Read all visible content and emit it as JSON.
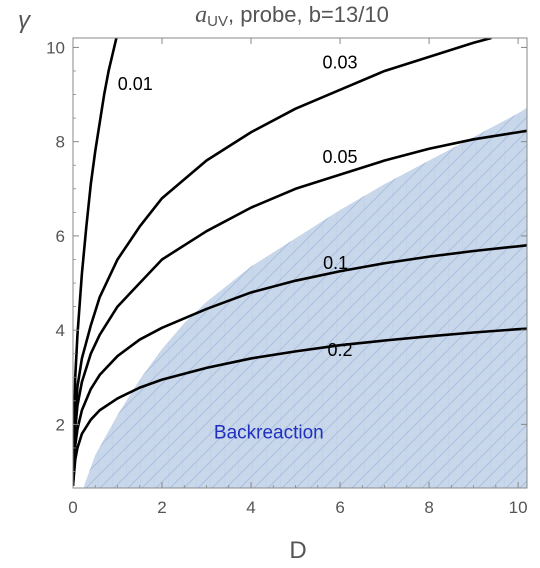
{
  "chart_data": {
    "type": "line",
    "title_main": "a",
    "title_sub": "UV",
    "title_rest": ", probe, b=13/10",
    "xlabel": "D",
    "ylabel": "γ",
    "xlim": [
      0,
      10.2
    ],
    "ylim": [
      0.65,
      10.2
    ],
    "xticks": [
      0,
      2,
      4,
      6,
      8,
      10
    ],
    "yticks": [
      2,
      4,
      6,
      8,
      10
    ],
    "grid": false,
    "series": [
      {
        "name": "0.01",
        "x": [
          0,
          0.05,
          0.1,
          0.2,
          0.3,
          0.4,
          0.5,
          0.6,
          0.7,
          0.8,
          0.9,
          1.0
        ],
        "y": [
          0.7,
          3.0,
          3.9,
          5.2,
          6.2,
          7.1,
          7.8,
          8.4,
          9.0,
          9.5,
          9.9,
          10.3
        ]
      },
      {
        "name": "0.03",
        "x": [
          0,
          0.05,
          0.1,
          0.2,
          0.4,
          0.6,
          1.0,
          1.5,
          2,
          3,
          4,
          5,
          6,
          7,
          8,
          9,
          9.4
        ],
        "y": [
          0.7,
          2.2,
          2.8,
          3.4,
          4.1,
          4.7,
          5.5,
          6.2,
          6.8,
          7.6,
          8.2,
          8.7,
          9.1,
          9.5,
          9.8,
          10.1,
          10.2
        ]
      },
      {
        "name": "0.05",
        "x": [
          0,
          0.05,
          0.1,
          0.2,
          0.4,
          0.6,
          1.0,
          1.5,
          2,
          3,
          4,
          5,
          6,
          7,
          8,
          9,
          10,
          10.2
        ],
        "y": [
          0.7,
          1.9,
          2.4,
          2.9,
          3.5,
          3.9,
          4.5,
          5.0,
          5.5,
          6.1,
          6.6,
          7.0,
          7.3,
          7.6,
          7.85,
          8.05,
          8.2,
          8.23
        ]
      },
      {
        "name": "0.1",
        "x": [
          0,
          0.05,
          0.1,
          0.2,
          0.4,
          0.6,
          1.0,
          1.5,
          2,
          3,
          4,
          5,
          6,
          7,
          8,
          9,
          10,
          10.2
        ],
        "y": [
          0.7,
          1.55,
          1.9,
          2.3,
          2.75,
          3.05,
          3.45,
          3.8,
          4.05,
          4.45,
          4.8,
          5.05,
          5.25,
          5.42,
          5.56,
          5.68,
          5.78,
          5.8
        ]
      },
      {
        "name": "0.2",
        "x": [
          0,
          0.05,
          0.1,
          0.2,
          0.4,
          0.6,
          1.0,
          1.5,
          2,
          3,
          4,
          5,
          6,
          7,
          8,
          9,
          10,
          10.2
        ],
        "y": [
          0.7,
          1.25,
          1.5,
          1.8,
          2.1,
          2.3,
          2.55,
          2.78,
          2.95,
          3.2,
          3.4,
          3.55,
          3.68,
          3.78,
          3.87,
          3.95,
          4.02,
          4.03
        ]
      }
    ],
    "curve_labels": [
      {
        "text": "0.01",
        "x": 1.4,
        "y": 9.1
      },
      {
        "text": "0.03",
        "x": 6.0,
        "y": 9.55
      },
      {
        "text": "0.05",
        "x": 6.0,
        "y": 7.55
      },
      {
        "text": "0.1",
        "x": 5.9,
        "y": 5.3
      },
      {
        "text": "0.2",
        "x": 6.0,
        "y": 3.45
      }
    ],
    "region": {
      "label": "Backreaction",
      "label_x": 4.4,
      "label_y": 1.7,
      "color": "#c9d7ea",
      "hatch_color": "#9db6d8",
      "boundary_x": [
        0.25,
        0.5,
        1.0,
        1.5,
        2.0,
        2.5,
        3.0,
        4.0,
        5.0,
        6.0,
        7.0,
        8.0,
        9.0,
        10.0,
        10.2
      ],
      "boundary_y": [
        0.7,
        1.35,
        2.2,
        2.95,
        3.6,
        4.15,
        4.6,
        5.35,
        5.95,
        6.55,
        7.1,
        7.6,
        8.1,
        8.6,
        8.72
      ]
    },
    "curve_color": "#000000",
    "curve_color_in_region": "#1b2a3a"
  }
}
